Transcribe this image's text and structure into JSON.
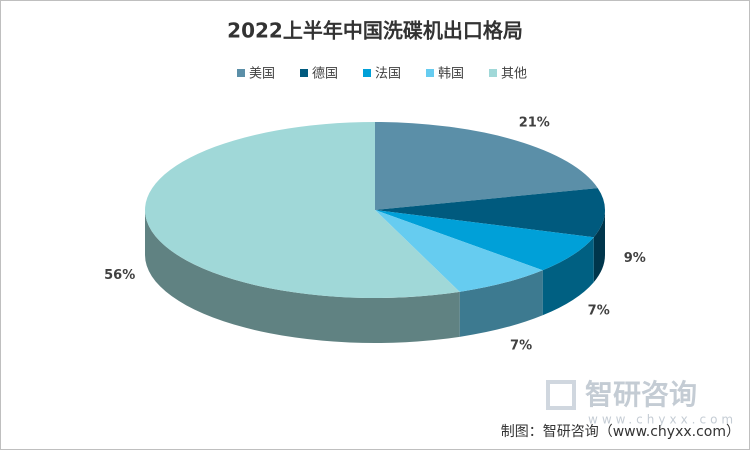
{
  "chart_data": {
    "type": "pie3d",
    "title": "2022上半年中国洗碟机出口格局",
    "categories": [
      "美国",
      "德国",
      "法国",
      "韩国",
      "其他"
    ],
    "values": [
      21,
      9,
      7,
      7,
      56
    ],
    "value_labels": [
      "21%",
      "9%",
      "7%",
      "7%",
      "56%"
    ],
    "colors": [
      "#5b8fa8",
      "#005a7e",
      "#00a0d8",
      "#66ccf0",
      "#a0d8d8"
    ],
    "legend": "top",
    "watermark": {
      "name": "智研咨询",
      "url": "www.chyxx.com"
    },
    "source": "制图：智研咨询（www.chyxx.com）"
  }
}
